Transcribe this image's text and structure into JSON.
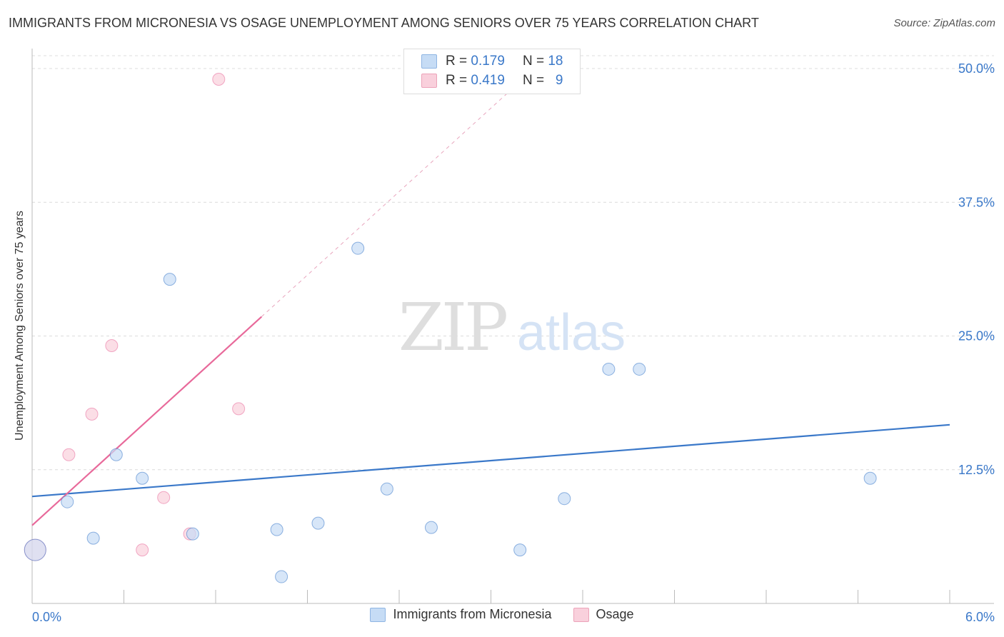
{
  "header": {
    "title": "IMMIGRANTS FROM MICRONESIA VS OSAGE UNEMPLOYMENT AMONG SENIORS OVER 75 YEARS CORRELATION CHART",
    "source": "Source: ZipAtlas.com"
  },
  "watermark": {
    "zip": "ZIP",
    "atlas": "atlas"
  },
  "legend": {
    "rows": [
      {
        "r_label": "R =",
        "r_value": "0.179",
        "n_label": "N =",
        "n_value": "18",
        "color": "#b8d3f3"
      },
      {
        "r_label": "R =",
        "r_value": "0.419",
        "n_label": "N =",
        "n_value": "9",
        "color": "#f7c2d0"
      }
    ]
  },
  "chart_data": {
    "type": "scatter",
    "title": "IMMIGRANTS FROM MICRONESIA VS OSAGE UNEMPLOYMENT AMONG SENIORS OVER 75 YEARS CORRELATION CHART",
    "xlabel": "",
    "ylabel": "Unemployment Among Seniors over 75 years",
    "xlim": [
      0,
      6
    ],
    "ylim": [
      0,
      50
    ],
    "x_tick_labels": [
      "0.0%",
      "6.0%"
    ],
    "y_ticks": [
      12.5,
      25.0,
      37.5,
      50.0
    ],
    "y_tick_labels": [
      "12.5%",
      "25.0%",
      "37.5%",
      "50.0%"
    ],
    "grid": true,
    "legend_position": "bottom",
    "series": [
      {
        "name": "Immigrants from Micronesia",
        "color": "#3a78c9",
        "fill": "#c6dcf5",
        "points": [
          {
            "x": 0.02,
            "y": 5.0
          },
          {
            "x": 0.23,
            "y": 9.5
          },
          {
            "x": 0.4,
            "y": 6.1
          },
          {
            "x": 0.55,
            "y": 13.9
          },
          {
            "x": 0.72,
            "y": 11.7
          },
          {
            "x": 0.9,
            "y": 30.3
          },
          {
            "x": 1.05,
            "y": 6.5
          },
          {
            "x": 1.6,
            "y": 6.9
          },
          {
            "x": 1.63,
            "y": 2.5
          },
          {
            "x": 1.87,
            "y": 7.5
          },
          {
            "x": 2.13,
            "y": 33.2
          },
          {
            "x": 2.32,
            "y": 10.7
          },
          {
            "x": 2.61,
            "y": 7.1
          },
          {
            "x": 3.19,
            "y": 5.0
          },
          {
            "x": 3.48,
            "y": 9.8
          },
          {
            "x": 3.77,
            "y": 21.9
          },
          {
            "x": 3.97,
            "y": 21.9
          },
          {
            "x": 5.48,
            "y": 11.7
          }
        ],
        "trend": {
          "x": [
            0,
            6
          ],
          "y": [
            10.0,
            16.7
          ]
        }
      },
      {
        "name": "Osage",
        "color": "#e8699a",
        "fill": "#f9d0dc",
        "points": [
          {
            "x": 0.02,
            "y": 5.0
          },
          {
            "x": 0.24,
            "y": 13.9
          },
          {
            "x": 0.39,
            "y": 17.7
          },
          {
            "x": 0.52,
            "y": 24.1
          },
          {
            "x": 0.72,
            "y": 5.0
          },
          {
            "x": 0.86,
            "y": 9.9
          },
          {
            "x": 1.03,
            "y": 6.5
          },
          {
            "x": 1.22,
            "y": 49.0
          },
          {
            "x": 1.35,
            "y": 18.2
          }
        ],
        "trend": {
          "x": [
            0,
            1.5
          ],
          "y": [
            7.3,
            26.8
          ]
        },
        "trend_extension": {
          "x": [
            1.5,
            3.2
          ],
          "y": [
            26.8,
            48.9
          ]
        }
      }
    ]
  }
}
